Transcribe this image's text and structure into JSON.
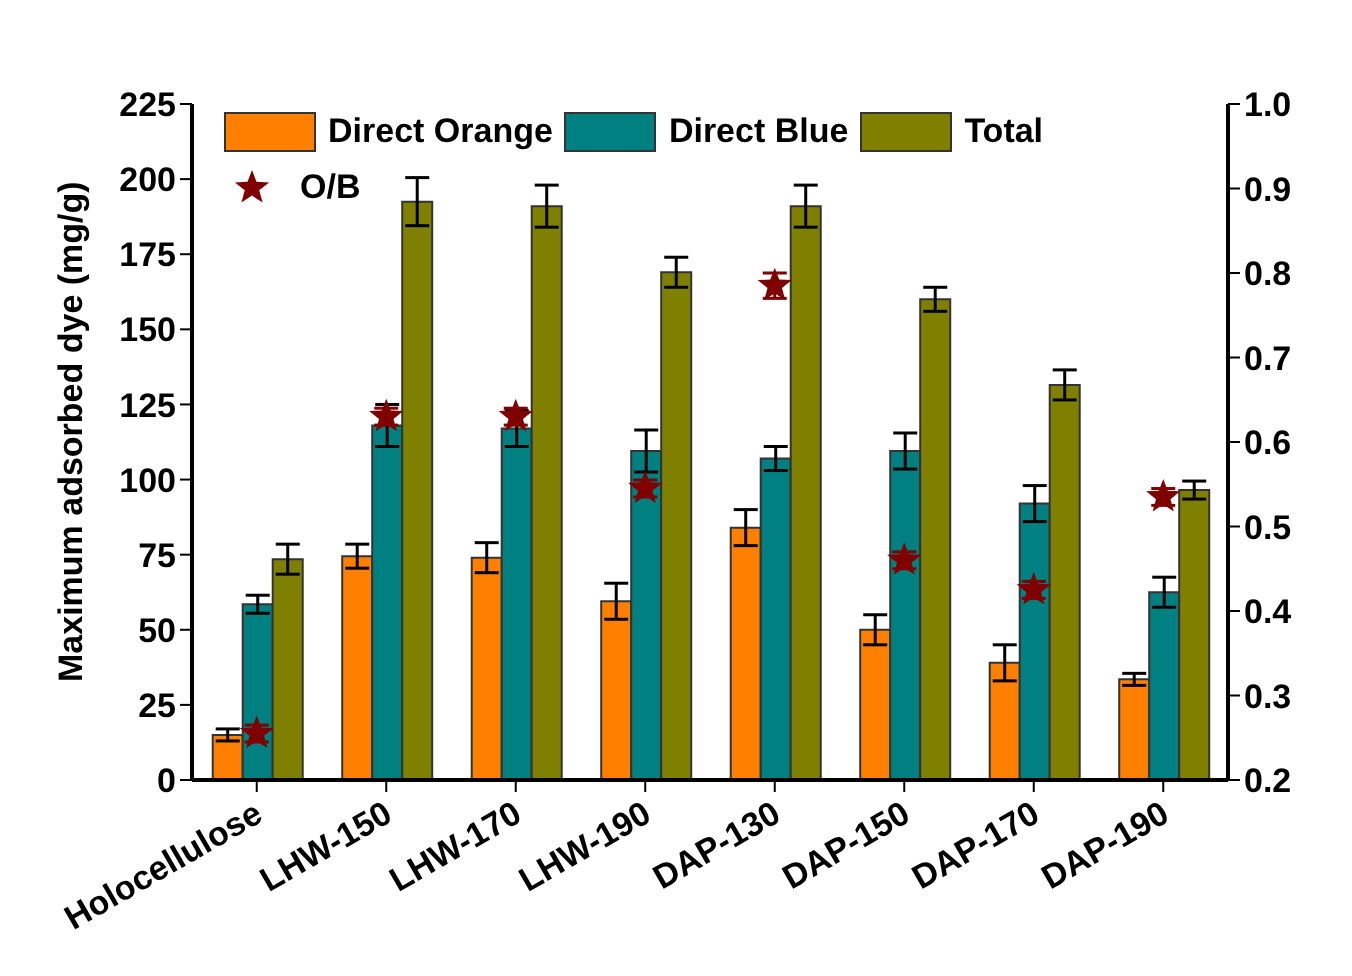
{
  "chart_data": {
    "type": "bar",
    "ylabel": "Maximum adsorbed dye (mg/g)",
    "categories": [
      "Holocellulose",
      "LHW-150",
      "LHW-170",
      "LHW-190",
      "DAP-130",
      "DAP-150",
      "DAP-170",
      "DAP-190"
    ],
    "series": [
      {
        "name": "Direct Orange",
        "color": "#ff8000",
        "values": [
          15,
          74.5,
          74,
          59.5,
          84,
          50,
          39,
          33.5
        ],
        "errors": [
          2,
          4,
          5,
          6,
          6,
          5,
          6,
          2
        ]
      },
      {
        "name": "Direct Blue",
        "color": "#008080",
        "values": [
          58.5,
          118,
          117,
          109.5,
          107,
          109.5,
          92,
          62.5
        ],
        "errors": [
          3,
          7,
          6,
          7,
          4,
          6,
          6,
          5
        ]
      },
      {
        "name": "Total",
        "color": "#808000",
        "values": [
          73.5,
          192.5,
          191,
          169,
          191,
          160,
          131.5,
          96.5
        ],
        "errors": [
          5,
          8,
          7,
          5,
          7,
          4,
          5,
          3
        ]
      },
      {
        "name": "O/B",
        "type": "scatter",
        "axis": "y2",
        "marker": "star",
        "color": "#800000",
        "values": [
          0.255,
          0.63,
          0.63,
          0.545,
          0.785,
          0.46,
          0.425,
          0.535
        ],
        "errors": [
          0.01,
          0.01,
          0.01,
          0.01,
          0.015,
          0.01,
          0.01,
          0.01
        ]
      }
    ],
    "ylim": [
      0,
      225
    ],
    "yticks": [
      0,
      25,
      50,
      75,
      100,
      125,
      150,
      175,
      200,
      225
    ],
    "y2lim": [
      0.2,
      1.0
    ],
    "y2ticks": [
      0.2,
      0.3,
      0.4,
      0.5,
      0.6,
      0.7,
      0.8,
      0.9,
      {
        "value": 1.0,
        "label": "1.0"
      }
    ],
    "grid": false,
    "legend": "top left"
  }
}
